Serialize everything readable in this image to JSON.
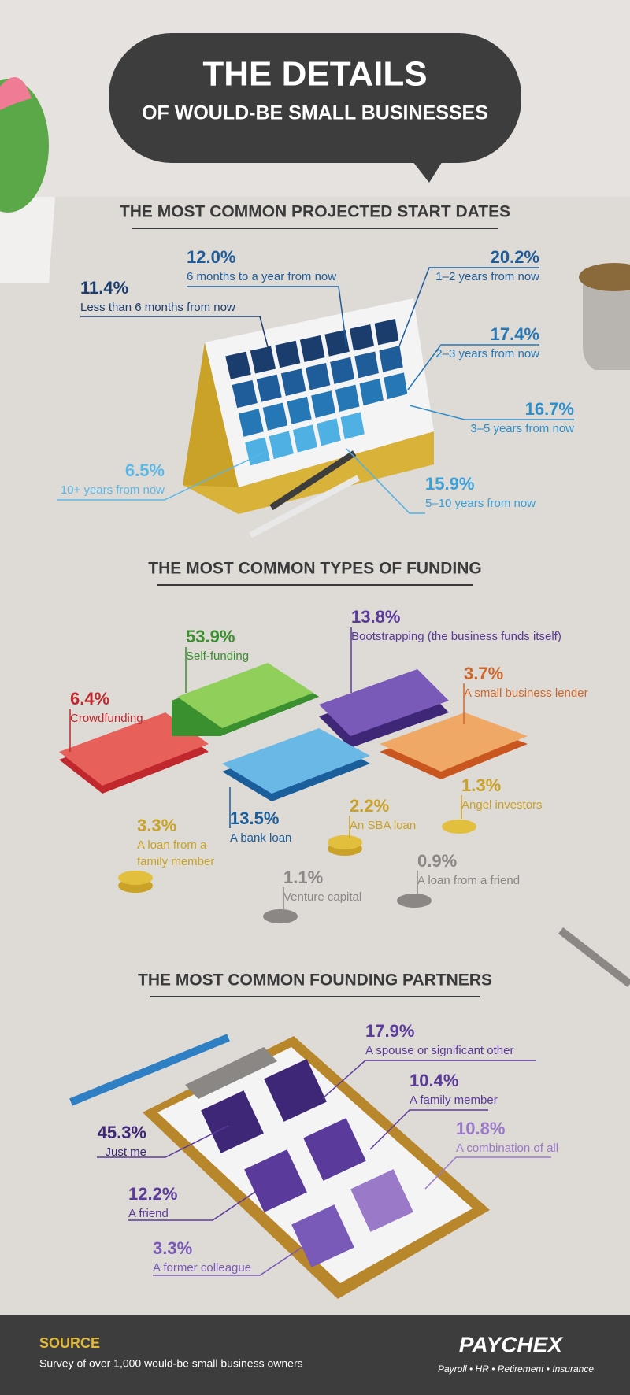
{
  "header": {
    "title": "THE DETAILS",
    "subtitle": "OF WOULD-BE SMALL BUSINESSES"
  },
  "start_dates": {
    "heading": "THE MOST COMMON PROJECTED START DATES",
    "items": [
      {
        "value": "11.4%",
        "label": "Less than 6 months from now"
      },
      {
        "value": "12.0%",
        "label": "6 months to a year from now"
      },
      {
        "value": "20.2%",
        "label": "1–2 years from now"
      },
      {
        "value": "17.4%",
        "label": "2–3 years from now"
      },
      {
        "value": "16.7%",
        "label": "3–5 years from now"
      },
      {
        "value": "15.9%",
        "label": "5–10 years from now"
      },
      {
        "value": "6.5%",
        "label": "10+ years from now"
      }
    ]
  },
  "funding": {
    "heading": "THE MOST COMMON TYPES OF FUNDING",
    "items": [
      {
        "value": "53.9%",
        "label": [
          "Self-funding"
        ]
      },
      {
        "value": "13.8%",
        "label": [
          "Bootstrapping (the business funds itself)"
        ]
      },
      {
        "value": "6.4%",
        "label": [
          "Crowdfunding"
        ]
      },
      {
        "value": "3.7%",
        "label": [
          "A small business lender"
        ]
      },
      {
        "value": "13.5%",
        "label": [
          "A bank loan"
        ]
      },
      {
        "value": "2.2%",
        "label": [
          "An SBA loan"
        ]
      },
      {
        "value": "1.3%",
        "label": [
          "Angel investors"
        ]
      },
      {
        "value": "3.3%",
        "label": [
          "A loan from a",
          "family member"
        ]
      },
      {
        "value": "1.1%",
        "label": [
          "Venture capital"
        ]
      },
      {
        "value": "0.9%",
        "label": [
          "A loan from a friend"
        ]
      }
    ]
  },
  "partners": {
    "heading": "THE MOST COMMON FOUNDING PARTNERS",
    "items": [
      {
        "value": "17.9%",
        "label": "A spouse or significant other"
      },
      {
        "value": "10.4%",
        "label": "A family member"
      },
      {
        "value": "45.3%",
        "label": "Just me"
      },
      {
        "value": "10.8%",
        "label": "A combination of all"
      },
      {
        "value": "12.2%",
        "label": "A friend"
      },
      {
        "value": "3.3%",
        "label": "A former colleague"
      }
    ]
  },
  "footer": {
    "source_title": "SOURCE",
    "source_text": "Survey of over 1,000 would-be small business owners",
    "brand": "PAYCHEX",
    "tagline": "Payroll • HR • Retirement • Insurance"
  }
}
